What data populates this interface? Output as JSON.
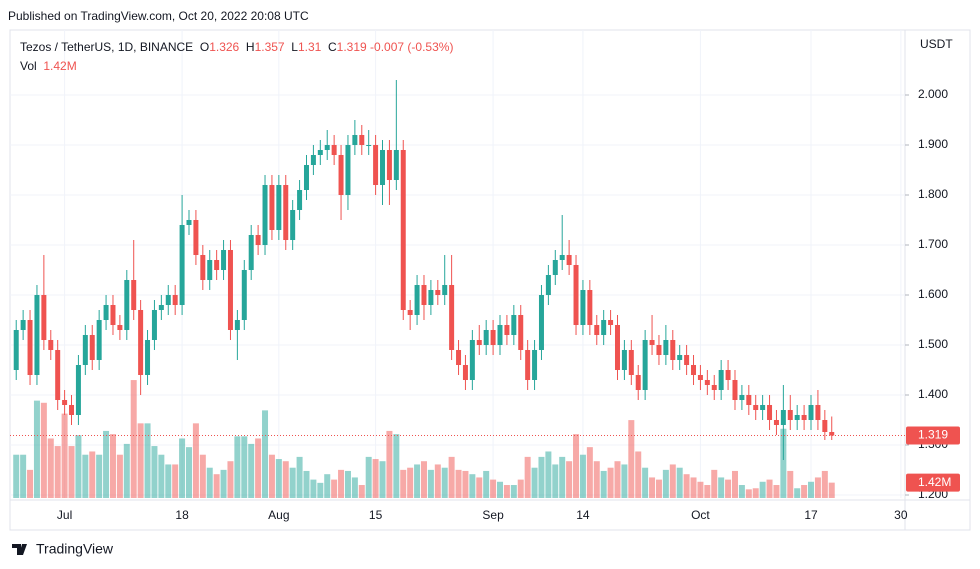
{
  "header": {
    "published": "Published on TradingView.com, Oct 20, 2022 20:08 UTC"
  },
  "footer": {
    "brand": "TradingView"
  },
  "chart_data": {
    "type": "candlestick",
    "symbol": "Tezos / TetherUS, 1D, BINANCE",
    "currency": "USDT",
    "legend_labels": [
      "O",
      "H",
      "L",
      "C"
    ],
    "change": -0.007,
    "change_label": "(-0.53%)",
    "volume_name": "Vol",
    "volume_value_label": "1.42M",
    "up_color": "#26a69a",
    "down_color": "#ef5350",
    "grid": true,
    "ylim": [
      1.194,
      2.13
    ],
    "yticks": [
      {
        "value": 1.2,
        "label": "1.200"
      },
      {
        "value": 1.3,
        "label": "1.300"
      },
      {
        "value": 1.4,
        "label": "1.400"
      },
      {
        "value": 1.5,
        "label": "1.500"
      },
      {
        "value": 1.6,
        "label": "1.600"
      },
      {
        "value": 1.7,
        "label": "1.700"
      },
      {
        "value": 1.8,
        "label": "1.800"
      },
      {
        "value": 1.9,
        "label": "1.900"
      },
      {
        "value": 2.0,
        "label": "2.000"
      }
    ],
    "xlim": [
      -0.9,
      128.6
    ],
    "xticks": [
      {
        "value": 7,
        "label": "Jul"
      },
      {
        "value": 24,
        "label": "18"
      },
      {
        "value": 38,
        "label": "Aug"
      },
      {
        "value": 52,
        "label": "15"
      },
      {
        "value": 69,
        "label": "Sep"
      },
      {
        "value": 82,
        "label": "14"
      },
      {
        "value": 99,
        "label": "Oct"
      },
      {
        "value": 115,
        "label": "17"
      },
      {
        "value": 128,
        "label": "30"
      }
    ],
    "ohlc": [
      [
        1.45,
        1.55,
        1.43,
        1.53
      ],
      [
        1.53,
        1.57,
        1.51,
        1.55
      ],
      [
        1.55,
        1.57,
        1.42,
        1.44
      ],
      [
        1.44,
        1.62,
        1.42,
        1.6
      ],
      [
        1.6,
        1.68,
        1.49,
        1.51
      ],
      [
        1.51,
        1.53,
        1.47,
        1.49
      ],
      [
        1.49,
        1.51,
        1.37,
        1.39
      ],
      [
        1.39,
        1.41,
        1.36,
        1.38
      ],
      [
        1.38,
        1.4,
        1.34,
        1.36
      ],
      [
        1.36,
        1.48,
        1.34,
        1.46
      ],
      [
        1.46,
        1.54,
        1.44,
        1.52
      ],
      [
        1.52,
        1.54,
        1.45,
        1.47
      ],
      [
        1.47,
        1.57,
        1.45,
        1.55
      ],
      [
        1.55,
        1.6,
        1.53,
        1.58
      ],
      [
        1.58,
        1.6,
        1.52,
        1.54
      ],
      [
        1.54,
        1.56,
        1.51,
        1.53
      ],
      [
        1.53,
        1.65,
        1.51,
        1.63
      ],
      [
        1.63,
        1.71,
        1.55,
        1.57
      ],
      [
        1.57,
        1.59,
        1.4,
        1.44
      ],
      [
        1.44,
        1.53,
        1.42,
        1.51
      ],
      [
        1.51,
        1.59,
        1.49,
        1.57
      ],
      [
        1.57,
        1.6,
        1.55,
        1.58
      ],
      [
        1.58,
        1.62,
        1.56,
        1.6
      ],
      [
        1.6,
        1.62,
        1.56,
        1.58
      ],
      [
        1.58,
        1.8,
        1.56,
        1.74
      ],
      [
        1.74,
        1.77,
        1.72,
        1.75
      ],
      [
        1.75,
        1.77,
        1.66,
        1.68
      ],
      [
        1.68,
        1.7,
        1.61,
        1.63
      ],
      [
        1.63,
        1.69,
        1.61,
        1.67
      ],
      [
        1.67,
        1.69,
        1.63,
        1.65
      ],
      [
        1.65,
        1.71,
        1.63,
        1.69
      ],
      [
        1.69,
        1.71,
        1.51,
        1.53
      ],
      [
        1.53,
        1.57,
        1.47,
        1.55
      ],
      [
        1.55,
        1.67,
        1.53,
        1.65
      ],
      [
        1.65,
        1.74,
        1.63,
        1.72
      ],
      [
        1.72,
        1.74,
        1.68,
        1.7
      ],
      [
        1.7,
        1.84,
        1.68,
        1.82
      ],
      [
        1.82,
        1.84,
        1.71,
        1.73
      ],
      [
        1.73,
        1.84,
        1.71,
        1.82
      ],
      [
        1.82,
        1.84,
        1.69,
        1.71
      ],
      [
        1.71,
        1.79,
        1.69,
        1.77
      ],
      [
        1.77,
        1.83,
        1.75,
        1.81
      ],
      [
        1.81,
        1.88,
        1.79,
        1.86
      ],
      [
        1.86,
        1.9,
        1.84,
        1.88
      ],
      [
        1.88,
        1.91,
        1.86,
        1.89
      ],
      [
        1.89,
        1.93,
        1.87,
        1.9
      ],
      [
        1.9,
        1.92,
        1.86,
        1.88
      ],
      [
        1.88,
        1.9,
        1.75,
        1.8
      ],
      [
        1.8,
        1.92,
        1.77,
        1.9
      ],
      [
        1.9,
        1.95,
        1.88,
        1.92
      ],
      [
        1.92,
        1.94,
        1.88,
        1.9
      ],
      [
        1.9,
        1.93,
        1.88,
        1.9
      ],
      [
        1.9,
        1.92,
        1.8,
        1.82
      ],
      [
        1.82,
        1.91,
        1.78,
        1.89
      ],
      [
        1.89,
        1.91,
        1.78,
        1.83
      ],
      [
        1.83,
        2.03,
        1.81,
        1.89
      ],
      [
        1.89,
        1.91,
        1.55,
        1.57
      ],
      [
        1.57,
        1.59,
        1.53,
        1.56
      ],
      [
        1.56,
        1.64,
        1.54,
        1.62
      ],
      [
        1.62,
        1.64,
        1.55,
        1.58
      ],
      [
        1.58,
        1.63,
        1.56,
        1.61
      ],
      [
        1.61,
        1.63,
        1.58,
        1.6
      ],
      [
        1.6,
        1.68,
        1.58,
        1.62
      ],
      [
        1.62,
        1.68,
        1.47,
        1.49
      ],
      [
        1.49,
        1.51,
        1.44,
        1.46
      ],
      [
        1.46,
        1.48,
        1.41,
        1.43
      ],
      [
        1.43,
        1.53,
        1.41,
        1.51
      ],
      [
        1.51,
        1.54,
        1.48,
        1.5
      ],
      [
        1.5,
        1.55,
        1.48,
        1.53
      ],
      [
        1.53,
        1.55,
        1.48,
        1.5
      ],
      [
        1.5,
        1.56,
        1.48,
        1.54
      ],
      [
        1.54,
        1.56,
        1.5,
        1.52
      ],
      [
        1.52,
        1.58,
        1.5,
        1.56
      ],
      [
        1.56,
        1.58,
        1.47,
        1.49
      ],
      [
        1.49,
        1.51,
        1.41,
        1.43
      ],
      [
        1.43,
        1.51,
        1.41,
        1.49
      ],
      [
        1.49,
        1.62,
        1.47,
        1.6
      ],
      [
        1.6,
        1.66,
        1.58,
        1.64
      ],
      [
        1.64,
        1.69,
        1.62,
        1.67
      ],
      [
        1.67,
        1.76,
        1.65,
        1.68
      ],
      [
        1.68,
        1.71,
        1.64,
        1.66
      ],
      [
        1.66,
        1.68,
        1.52,
        1.54
      ],
      [
        1.54,
        1.63,
        1.52,
        1.61
      ],
      [
        1.61,
        1.63,
        1.52,
        1.54
      ],
      [
        1.54,
        1.56,
        1.5,
        1.52
      ],
      [
        1.52,
        1.57,
        1.5,
        1.55
      ],
      [
        1.55,
        1.57,
        1.52,
        1.54
      ],
      [
        1.54,
        1.56,
        1.43,
        1.45
      ],
      [
        1.45,
        1.51,
        1.43,
        1.49
      ],
      [
        1.49,
        1.51,
        1.42,
        1.44
      ],
      [
        1.44,
        1.46,
        1.39,
        1.41
      ],
      [
        1.41,
        1.53,
        1.39,
        1.51
      ],
      [
        1.51,
        1.56,
        1.48,
        1.5
      ],
      [
        1.5,
        1.52,
        1.46,
        1.48
      ],
      [
        1.48,
        1.54,
        1.46,
        1.51
      ],
      [
        1.51,
        1.53,
        1.45,
        1.47
      ],
      [
        1.47,
        1.5,
        1.45,
        1.48
      ],
      [
        1.48,
        1.5,
        1.44,
        1.46
      ],
      [
        1.46,
        1.48,
        1.42,
        1.44
      ],
      [
        1.44,
        1.46,
        1.41,
        1.43
      ],
      [
        1.43,
        1.45,
        1.4,
        1.42
      ],
      [
        1.42,
        1.44,
        1.39,
        1.41
      ],
      [
        1.41,
        1.47,
        1.39,
        1.45
      ],
      [
        1.45,
        1.47,
        1.41,
        1.43
      ],
      [
        1.43,
        1.45,
        1.37,
        1.39
      ],
      [
        1.39,
        1.42,
        1.37,
        1.4
      ],
      [
        1.4,
        1.42,
        1.36,
        1.38
      ],
      [
        1.38,
        1.4,
        1.35,
        1.37
      ],
      [
        1.37,
        1.4,
        1.35,
        1.38
      ],
      [
        1.38,
        1.4,
        1.33,
        1.35
      ],
      [
        1.35,
        1.37,
        1.32,
        1.34
      ],
      [
        1.34,
        1.42,
        1.27,
        1.37
      ],
      [
        1.37,
        1.4,
        1.33,
        1.35
      ],
      [
        1.35,
        1.38,
        1.33,
        1.36
      ],
      [
        1.36,
        1.38,
        1.33,
        1.35
      ],
      [
        1.35,
        1.4,
        1.33,
        1.38
      ],
      [
        1.38,
        1.41,
        1.33,
        1.35
      ],
      [
        1.35,
        1.37,
        1.31,
        1.326
      ],
      [
        1.326,
        1.357,
        1.31,
        1.319
      ]
    ],
    "volume": [
      4.0,
      4.0,
      2.6,
      9.0,
      8.8,
      5.5,
      4.8,
      7.8,
      4.8,
      5.8,
      4.0,
      4.3,
      4.0,
      6.2,
      5.9,
      4.0,
      5.0,
      10.9,
      6.9,
      6.9,
      4.8,
      4.0,
      3.1,
      3.1,
      5.5,
      4.7,
      6.9,
      4.0,
      2.8,
      2.2,
      2.6,
      3.4,
      5.7,
      5.7,
      5.0,
      5.5,
      8.1,
      4.0,
      3.6,
      3.4,
      2.8,
      3.8,
      2.5,
      1.7,
      1.4,
      2.2,
      1.7,
      2.6,
      2.5,
      1.9,
      1.2,
      3.8,
      3.6,
      3.4,
      6.2,
      5.9,
      2.6,
      2.8,
      3.1,
      3.4,
      2.6,
      3.1,
      2.8,
      3.8,
      2.6,
      2.5,
      2.2,
      1.9,
      2.5,
      1.7,
      1.5,
      1.2,
      1.2,
      1.7,
      3.8,
      2.8,
      3.8,
      4.3,
      3.1,
      3.8,
      3.4,
      5.9,
      4.0,
      4.7,
      3.4,
      2.5,
      2.8,
      3.4,
      3.1,
      7.2,
      4.3,
      2.8,
      1.9,
      1.7,
      2.6,
      3.1,
      2.8,
      2.2,
      1.9,
      1.5,
      1.2,
      2.6,
      1.9,
      1.7,
      2.5,
      1.2,
      0.8,
      0.9,
      1.5,
      1.7,
      1.2,
      6.4,
      2.5,
      0.9,
      1.2,
      1.5,
      1.9,
      2.5,
      1.42
    ]
  }
}
